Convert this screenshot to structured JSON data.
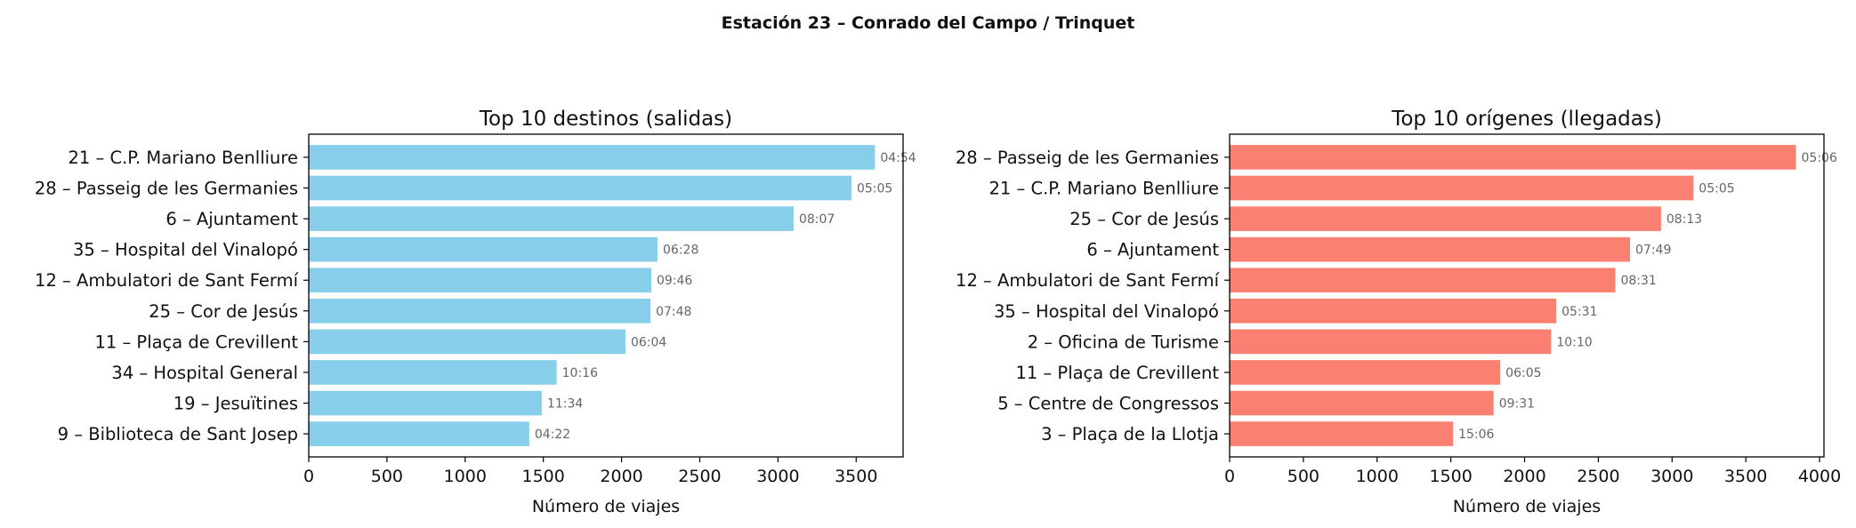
{
  "chart_data": [
    {
      "type": "bar",
      "orientation": "horizontal",
      "suptitle": "Estación 23 – Conrado del Campo / Trinquet",
      "title": "Top 10 destinos (salidas)",
      "xlabel": "Número de viajes",
      "ylabel": "",
      "xlim": [
        0,
        3800
      ],
      "xticks": [
        0,
        500,
        1000,
        1500,
        2000,
        2500,
        3000,
        3500
      ],
      "color": "#87CEEB",
      "categories": [
        "21 – C.P. Mariano Benlliure",
        "28 – Passeig de les Germanies",
        "6 – Ajuntament",
        "35 – Hospital del Vinalopó",
        "12 – Ambulatori de Sant Fermí",
        "25 – Cor de Jesús",
        "11 – Plaça de Crevillent",
        "34 – Hospital General",
        "19 – Jesuïtines",
        "9 – Biblioteca de Sant Josep"
      ],
      "values": [
        3620,
        3470,
        3100,
        2230,
        2190,
        2185,
        2025,
        1585,
        1490,
        1410
      ],
      "labels": [
        "04:54",
        "05:05",
        "08:07",
        "06:28",
        "09:46",
        "07:48",
        "06:04",
        "10:16",
        "11:34",
        "04:22"
      ]
    },
    {
      "type": "bar",
      "orientation": "horizontal",
      "title": "Top 10 orígenes (llegadas)",
      "xlabel": "Número de viajes",
      "ylabel": "",
      "xlim": [
        0,
        4030
      ],
      "xticks": [
        0,
        500,
        1000,
        1500,
        2000,
        2500,
        3000,
        3500,
        4000
      ],
      "color": "#FA8072",
      "categories": [
        "28 – Passeig de les Germanies",
        "21 – C.P. Mariano Benlliure",
        "25 – Cor de Jesús",
        "6 – Ajuntament",
        "12 – Ambulatori de Sant Fermí",
        "35 – Hospital del Vinalopó",
        "2 – Oficina de Turisme",
        "11 – Plaça de Crevillent",
        "5 – Centre de Congressos",
        "3 – Plaça de la Llotja"
      ],
      "values": [
        3840,
        3145,
        2925,
        2715,
        2615,
        2215,
        2180,
        1835,
        1790,
        1515
      ],
      "labels": [
        "05:06",
        "05:05",
        "08:13",
        "07:49",
        "08:31",
        "05:31",
        "10:10",
        "06:05",
        "09:31",
        "15:06"
      ]
    }
  ]
}
